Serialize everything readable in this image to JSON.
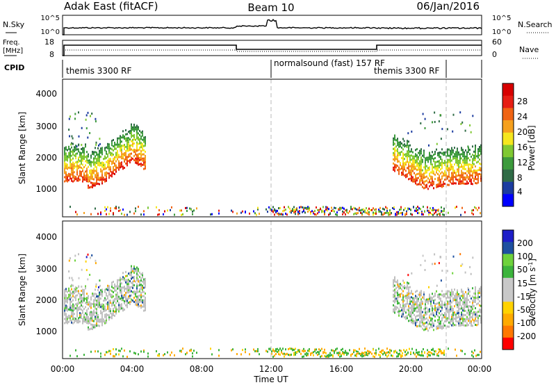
{
  "header": {
    "left": "Adak East (fitACF)",
    "center": "Beam 10",
    "right": "06/Jan/2016"
  },
  "strip1": {
    "left_label": "N.Sky",
    "left_ticks": [
      "10^5",
      "10^0"
    ],
    "right_ticks": [
      "10^5",
      "10^0"
    ],
    "right_label": "N.Search"
  },
  "strip2": {
    "left_label_1": "Freq.",
    "left_label_2": "[MHz]",
    "left_ticks": [
      "18",
      "8"
    ],
    "right_ticks": [
      "60",
      "0"
    ],
    "right_label": "Nave"
  },
  "cpid": {
    "label": "CPID",
    "segments": [
      "themis 3300 RF",
      "normalsound (fast) 157 RF",
      "themis 3300 RF"
    ]
  },
  "panel_power": {
    "ylabel": "Slant Range [km]",
    "yticks": [
      "4000",
      "3000",
      "2000",
      "1000"
    ],
    "cbar_label": "Power [dB]",
    "cbar_ticks": [
      "28",
      "24",
      "20",
      "16",
      "12",
      "8",
      "4"
    ]
  },
  "panel_velocity": {
    "ylabel": "Slant Range [km]",
    "yticks": [
      "4000",
      "3000",
      "2000",
      "1000"
    ],
    "cbar_label": "Velocity [m s",
    "cbar_label_sup": "-1",
    "cbar_label_end": "]",
    "cbar_ticks": [
      "200",
      "100",
      "50",
      "15",
      "-15",
      "-50",
      "-100",
      "-200"
    ]
  },
  "xaxis": {
    "ticks": [
      "00:00",
      "04:00",
      "08:00",
      "12:00",
      "16:00",
      "20:00",
      "00:00"
    ],
    "label": "Time UT"
  },
  "colors": {
    "power_scale": [
      "#0000ff",
      "#1c3ca0",
      "#2f6b46",
      "#3c9a3c",
      "#7fc832",
      "#f5e61e",
      "#f5a01e",
      "#f06414",
      "#e61e14",
      "#d70000"
    ],
    "velocity_scale": [
      "#ff0000",
      "#ff7800",
      "#ffaa00",
      "#ffd200",
      "#c8c8c8",
      "#c8c8c8",
      "#3cb43c",
      "#6ed23c",
      "#1e50a0",
      "#1e1ec8"
    ],
    "ground_scatter": "#c0c0c0"
  },
  "chart_data": [
    {
      "type": "heatmap",
      "title": "Power",
      "ylabel": "Slant Range [km]",
      "xlabel": "Time UT",
      "x_ticks": [
        "00:00",
        "04:00",
        "08:00",
        "12:00",
        "16:00",
        "20:00",
        "00:00"
      ],
      "y_ticks": [
        4000,
        3000,
        2000,
        1000
      ],
      "colorbar_ticks": [
        28,
        24,
        20,
        16,
        12,
        8,
        4
      ],
      "colorbar_label": "Power [dB]"
    },
    {
      "type": "heatmap",
      "title": "Velocity",
      "ylabel": "Slant Range [km]",
      "xlabel": "Time UT",
      "x_ticks": [
        "00:00",
        "04:00",
        "08:00",
        "12:00",
        "16:00",
        "20:00",
        "00:00"
      ],
      "y_ticks": [
        4000,
        3000,
        2000,
        1000
      ],
      "colorbar_ticks": [
        200,
        100,
        50,
        15,
        -15,
        -50,
        -100,
        -200
      ],
      "colorbar_label": "Velocity [m s-1]"
    }
  ]
}
